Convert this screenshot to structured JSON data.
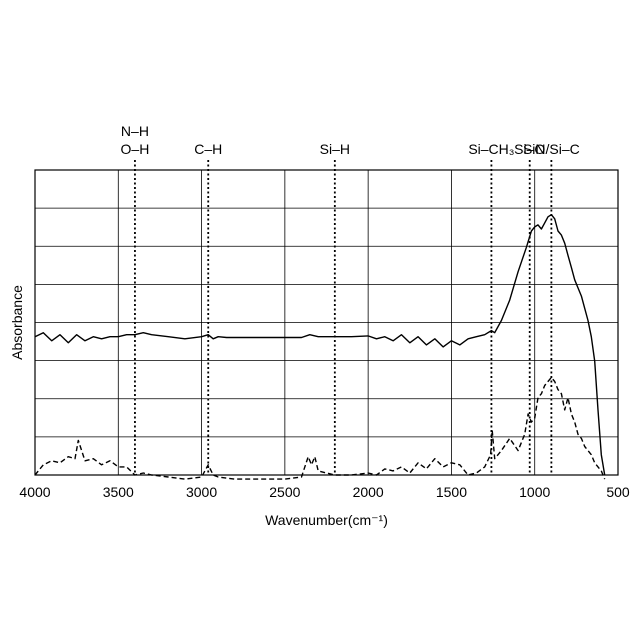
{
  "chart_data": {
    "type": "line",
    "xlabel": "Wavenumber(cm⁻¹)",
    "ylabel": "Absorbance",
    "xlim": [
      4000,
      500
    ],
    "x_reversed": true,
    "x_ticks": [
      4000,
      3500,
      3000,
      2500,
      2000,
      1500,
      1000,
      500
    ],
    "x_tick_labels": [
      "4000",
      "3500",
      "3000",
      "2500",
      "2000",
      "1500",
      "1000",
      "500"
    ],
    "ylim": [
      0,
      7.5
    ],
    "y_ticks_count": 7,
    "grid": true,
    "annotations": [
      {
        "lines": [
          "N–H",
          "O–H"
        ],
        "x": 3400
      },
      {
        "lines": [
          "C–H"
        ],
        "x": 2960
      },
      {
        "lines": [
          "Si–H"
        ],
        "x": 2200
      },
      {
        "lines": [
          "Si–CH₃"
        ],
        "x": 1260
      },
      {
        "lines": [
          "Si–O"
        ],
        "x": 1030
      },
      {
        "lines": [
          "SiN/Si–C"
        ],
        "x": 900
      }
    ],
    "series": [
      {
        "style": "solid",
        "x": [
          4000,
          3950,
          3900,
          3850,
          3800,
          3750,
          3700,
          3650,
          3600,
          3550,
          3500,
          3450,
          3400,
          3350,
          3300,
          3200,
          3100,
          3000,
          2960,
          2930,
          2900,
          2850,
          2800,
          2700,
          2600,
          2500,
          2400,
          2350,
          2300,
          2200,
          2100,
          2000,
          1950,
          1900,
          1850,
          1800,
          1750,
          1700,
          1650,
          1600,
          1550,
          1500,
          1450,
          1400,
          1350,
          1300,
          1260,
          1240,
          1200,
          1150,
          1100,
          1050,
          1020,
          1000,
          980,
          960,
          940,
          920,
          900,
          880,
          860,
          840,
          820,
          800,
          780,
          760,
          740,
          720,
          700,
          680,
          660,
          640,
          620,
          600,
          580
        ],
        "y": [
          3.4,
          3.5,
          3.3,
          3.45,
          3.25,
          3.45,
          3.3,
          3.4,
          3.35,
          3.4,
          3.4,
          3.45,
          3.45,
          3.5,
          3.45,
          3.4,
          3.35,
          3.4,
          3.45,
          3.35,
          3.4,
          3.38,
          3.38,
          3.38,
          3.38,
          3.38,
          3.38,
          3.45,
          3.4,
          3.4,
          3.4,
          3.42,
          3.35,
          3.4,
          3.3,
          3.45,
          3.25,
          3.4,
          3.2,
          3.35,
          3.15,
          3.3,
          3.2,
          3.35,
          3.4,
          3.45,
          3.55,
          3.5,
          3.8,
          4.3,
          5.0,
          5.6,
          6.0,
          6.1,
          6.15,
          6.05,
          6.2,
          6.35,
          6.4,
          6.3,
          6.0,
          5.9,
          5.7,
          5.4,
          5.1,
          4.8,
          4.6,
          4.4,
          4.1,
          3.8,
          3.4,
          2.8,
          1.6,
          0.5,
          0.0
        ]
      },
      {
        "style": "dashed",
        "x": [
          4000,
          3950,
          3900,
          3850,
          3800,
          3760,
          3740,
          3700,
          3650,
          3600,
          3550,
          3500,
          3450,
          3400,
          3350,
          3300,
          3200,
          3100,
          3000,
          2960,
          2930,
          2900,
          2800,
          2700,
          2600,
          2500,
          2400,
          2360,
          2340,
          2320,
          2300,
          2250,
          2200,
          2100,
          2000,
          1950,
          1900,
          1850,
          1800,
          1750,
          1700,
          1650,
          1600,
          1550,
          1500,
          1450,
          1400,
          1350,
          1300,
          1265,
          1255,
          1240,
          1200,
          1150,
          1100,
          1060,
          1040,
          1020,
          1000,
          980,
          960,
          940,
          920,
          900,
          880,
          860,
          840,
          820,
          800,
          780,
          760,
          740,
          720,
          700,
          680,
          660,
          640,
          620,
          600,
          580
        ],
        "y": [
          0.0,
          0.25,
          0.35,
          0.3,
          0.45,
          0.4,
          0.85,
          0.35,
          0.4,
          0.25,
          0.35,
          0.2,
          0.2,
          0.0,
          0.05,
          0.0,
          -0.05,
          -0.1,
          -0.05,
          0.25,
          0.0,
          -0.05,
          -0.1,
          -0.1,
          -0.1,
          -0.1,
          -0.05,
          0.45,
          0.25,
          0.45,
          0.1,
          0.05,
          0.0,
          0.0,
          0.05,
          0.0,
          0.15,
          0.1,
          0.2,
          0.05,
          0.3,
          0.15,
          0.4,
          0.2,
          0.3,
          0.25,
          0.0,
          0.05,
          0.2,
          0.5,
          1.1,
          0.4,
          0.6,
          0.9,
          0.6,
          1.0,
          1.5,
          1.3,
          1.4,
          1.9,
          2.0,
          2.2,
          2.3,
          2.4,
          2.3,
          2.1,
          2.0,
          1.6,
          1.9,
          1.5,
          1.3,
          1.0,
          0.9,
          0.7,
          0.6,
          0.5,
          0.3,
          0.2,
          0.1,
          -0.1
        ]
      }
    ]
  }
}
